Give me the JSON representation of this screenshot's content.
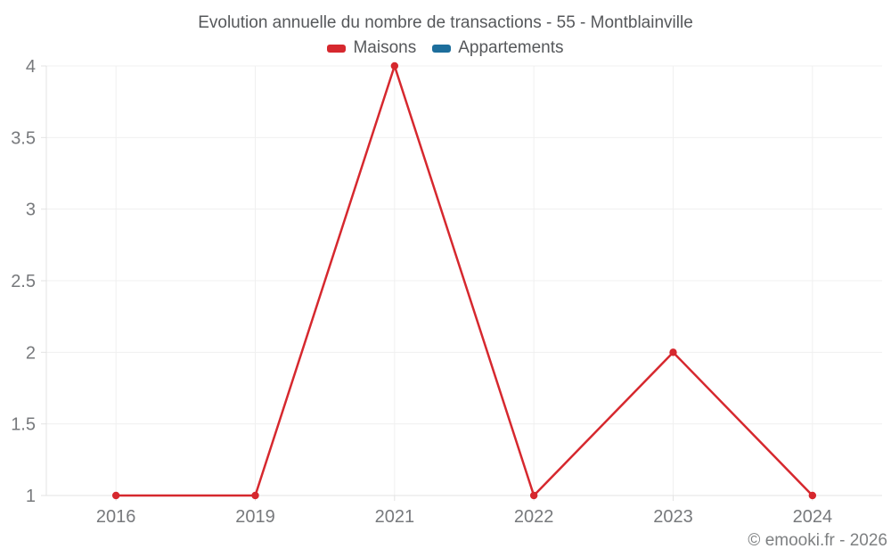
{
  "chart": {
    "footer": "© emooki.fr - 2026"
  },
  "chart_data": {
    "type": "line",
    "title": "Evolution annuelle du nombre de transactions - 55 - Montblainville",
    "categories": [
      "2016",
      "2019",
      "2021",
      "2022",
      "2023",
      "2024"
    ],
    "series": [
      {
        "name": "Maisons",
        "color": "#d6282e",
        "values": [
          1,
          1,
          4,
          1,
          2,
          1
        ]
      },
      {
        "name": "Appartements",
        "color": "#1d6e9c",
        "values": []
      }
    ],
    "xlabel": "",
    "ylabel": "",
    "ylim": [
      1,
      4
    ],
    "yticks": [
      1,
      1.5,
      2,
      2.5,
      3,
      3.5,
      4
    ],
    "ytick_labels": [
      "1",
      "1.5",
      "2",
      "2.5",
      "3",
      "3.5",
      "4"
    ],
    "grid": true,
    "legend_position": "top"
  }
}
